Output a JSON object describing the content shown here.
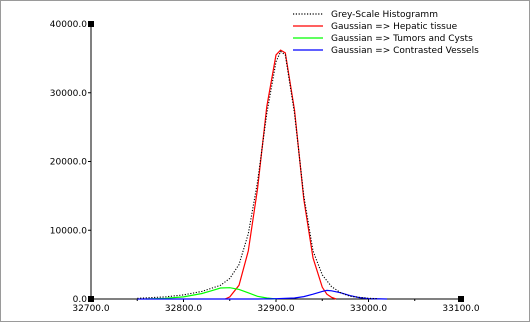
{
  "chart_data": {
    "type": "line",
    "title": "",
    "xlabel": "",
    "ylabel": "",
    "xlim": [
      32700,
      33100
    ],
    "ylim": [
      0,
      40000
    ],
    "x_ticks": [
      32700,
      32800,
      32900,
      33000,
      33100
    ],
    "x_tick_labels": [
      "32700.0",
      "32800.0",
      "32900.0",
      "33000.0",
      "33100.0"
    ],
    "y_ticks": [
      0,
      10000,
      20000,
      30000,
      40000
    ],
    "y_tick_labels": [
      "0.0",
      "10000.0",
      "20000.0",
      "30000.0",
      "40000.0"
    ],
    "grid": false,
    "legend_position": "top-right",
    "series": [
      {
        "name": "Grey-Scale Histogramm",
        "style": "dotted",
        "color": "#000000",
        "x": [
          32750,
          32780,
          32800,
          32820,
          32840,
          32850,
          32860,
          32870,
          32880,
          32890,
          32900,
          32905,
          32910,
          32920,
          32930,
          32940,
          32950,
          32960,
          32970,
          32980,
          33000,
          33010
        ],
        "y": [
          100,
          300,
          600,
          1100,
          2000,
          3000,
          5000,
          9500,
          17000,
          27000,
          34500,
          36000,
          35500,
          27000,
          15000,
          7000,
          3500,
          1800,
          900,
          400,
          100,
          50
        ]
      },
      {
        "name": "Gaussian => Hepatic tissue",
        "style": "solid",
        "color": "#ff0000",
        "x": [
          32845,
          32850,
          32860,
          32870,
          32880,
          32890,
          32900,
          32905,
          32910,
          32920,
          32930,
          32940,
          32950,
          32955,
          32960,
          32965
        ],
        "y": [
          0,
          300,
          2000,
          7000,
          16000,
          28000,
          35500,
          36200,
          35800,
          27500,
          14500,
          6000,
          1700,
          700,
          250,
          0
        ]
      },
      {
        "name": "Gaussian => Tumors and Cysts",
        "style": "solid",
        "color": "#00ff00",
        "x": [
          32760,
          32780,
          32800,
          32820,
          32830,
          32840,
          32850,
          32860,
          32870,
          32880,
          32890,
          32900
        ],
        "y": [
          0,
          100,
          300,
          800,
          1200,
          1600,
          1650,
          1400,
          900,
          400,
          150,
          0
        ]
      },
      {
        "name": "Gaussian => Contrasted Vessels",
        "style": "solid",
        "color": "#0000ff",
        "x": [
          32750,
          32850,
          32880,
          32900,
          32920,
          32930,
          32940,
          32950,
          32955,
          32960,
          32970,
          32980,
          32990,
          33000,
          33020
        ],
        "y": [
          0,
          0,
          0,
          50,
          150,
          350,
          700,
          1100,
          1250,
          1200,
          900,
          500,
          200,
          60,
          0
        ]
      }
    ]
  }
}
